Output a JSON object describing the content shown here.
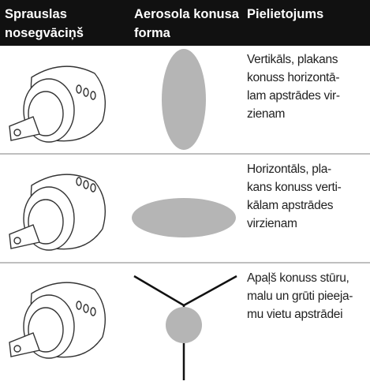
{
  "header": {
    "columns": [
      [
        "Sprauslas",
        "nosegvāciņš"
      ],
      [
        "Aerosola konusa",
        "forma"
      ],
      [
        "Pielietojums"
      ]
    ]
  },
  "table": {
    "rows": [
      {
        "use": [
          "Vertikāls, plakans",
          "konuss horizontā-",
          "lam apstrādes vir-",
          "zienam"
        ]
      },
      {
        "use": [
          "Horizontāls, pla-",
          "kans konuss verti-",
          "kālam apstrādes",
          "virzienam"
        ]
      },
      {
        "use": [
          "Apaļš konuss stūru,",
          "malu un grūti pieeja-",
          "mu vietu apstrādei"
        ]
      }
    ]
  }
}
